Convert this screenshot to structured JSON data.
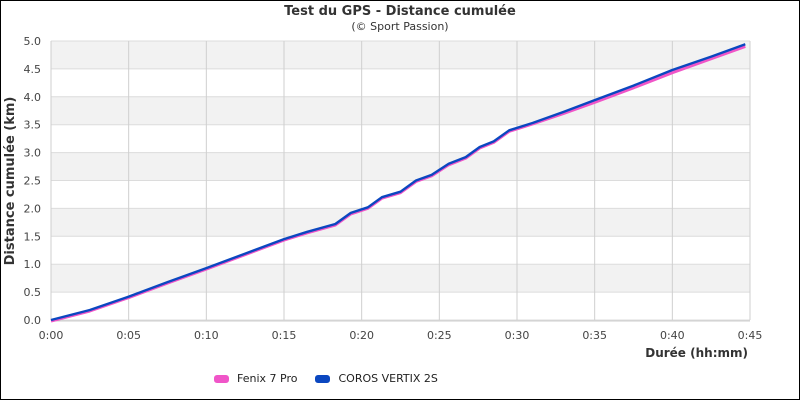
{
  "chart_data": {
    "type": "line",
    "title": "Test du GPS - Distance cumulée",
    "subtitle": "(© Sport Passion)",
    "xlabel": "Durée (hh:mm)",
    "ylabel": "Distance cumulée (km)",
    "xlim_minutes": [
      0,
      45
    ],
    "ylim": [
      0,
      5
    ],
    "x_tick_labels": [
      "0:00",
      "0:05",
      "0:10",
      "0:15",
      "0:20",
      "0:25",
      "0:30",
      "0:35",
      "0:40",
      "0:45"
    ],
    "y_tick_labels": [
      "0.0",
      "0.5",
      "1.0",
      "1.5",
      "2.0",
      "2.5",
      "3.0",
      "3.5",
      "4.0",
      "4.5",
      "5.0"
    ],
    "grid": true,
    "alternating_bands": true,
    "legend_position": "bottom",
    "x_minutes": [
      0,
      2.5,
      5,
      7.5,
      10,
      12.5,
      15,
      16.5,
      18.3,
      19.3,
      20.4,
      21.3,
      22.5,
      23.5,
      24.5,
      25.6,
      26.7,
      27.6,
      28.5,
      29.5,
      31,
      33,
      35,
      37.5,
      40,
      42.5,
      44.7
    ],
    "series": [
      {
        "name": "Fenix 7 Pro",
        "color": "#f055c8",
        "values": [
          0,
          0.18,
          0.42,
          0.68,
          0.93,
          1.19,
          1.45,
          1.58,
          1.72,
          1.92,
          2.02,
          2.2,
          2.3,
          2.5,
          2.6,
          2.8,
          2.92,
          3.1,
          3.2,
          3.4,
          3.53,
          3.72,
          3.92,
          4.18,
          4.45,
          4.7,
          4.92
        ]
      },
      {
        "name": "COROS VERTIX 2S",
        "color": "#0b47c0",
        "values": [
          0,
          0.18,
          0.42,
          0.68,
          0.93,
          1.19,
          1.45,
          1.58,
          1.72,
          1.92,
          2.02,
          2.2,
          2.3,
          2.5,
          2.6,
          2.8,
          2.92,
          3.1,
          3.2,
          3.4,
          3.53,
          3.73,
          3.94,
          4.2,
          4.48,
          4.72,
          4.94
        ]
      }
    ]
  },
  "legend": [
    {
      "label": "Fenix 7 Pro",
      "color": "#f055c8"
    },
    {
      "label": "COROS VERTIX 2S",
      "color": "#0b47c0"
    }
  ]
}
